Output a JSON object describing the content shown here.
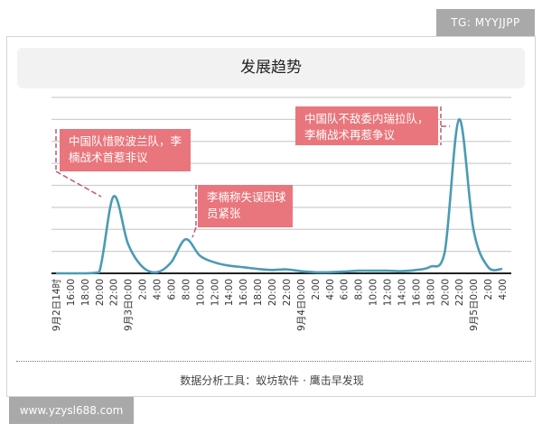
{
  "watermark_top": "TG: MYYJJPP",
  "watermark_bottom": "www.yzysl688.com",
  "footer": "数据分析工具：蚁坊软件 · 鹰击早发现",
  "chart_data": {
    "type": "line",
    "title": "发展趋势",
    "xlabel": "",
    "ylabel": "",
    "ylim": [
      0,
      8
    ],
    "grid": true,
    "y_ticks_shown": false,
    "line_color": "#4a9bb5",
    "annotation_color": "#e8767c",
    "categories": [
      "9月2日14时",
      "16:00",
      "18:00",
      "20:00",
      "22:00",
      "9月3日0:00",
      "2:00",
      "4:00",
      "6:00",
      "8:00",
      "10:00",
      "12:00",
      "14:00",
      "16:00",
      "18:00",
      "20:00",
      "22:00",
      "9月4日0:00",
      "2:00",
      "4:00",
      "6:00",
      "8:00",
      "10:00",
      "12:00",
      "14:00",
      "16:00",
      "18:00",
      "20:00",
      "22:00",
      "9月5日0:00",
      "2:00",
      "4:00"
    ],
    "values": [
      0,
      0,
      0,
      0.05,
      3.5,
      1.35,
      0.3,
      0.05,
      0.5,
      1.55,
      0.8,
      0.5,
      0.35,
      0.28,
      0.2,
      0.15,
      0.18,
      0.1,
      0.05,
      0.05,
      0.08,
      0.12,
      0.12,
      0.12,
      0.1,
      0.15,
      0.3,
      0.95,
      7.0,
      2.0,
      0.3,
      0.2
    ],
    "annotations": [
      {
        "text_lines": [
          "中国队惜败波兰队，李",
          "楠战术首惹非议"
        ],
        "category": "22:00"
      },
      {
        "text_lines": [
          "李楠称失误因球",
          "员紧张"
        ],
        "category": "8:00"
      },
      {
        "text_lines": [
          "中国队不敌委内瑞拉队，",
          "李楠战术再惹争议"
        ],
        "category": "22:00"
      }
    ]
  }
}
